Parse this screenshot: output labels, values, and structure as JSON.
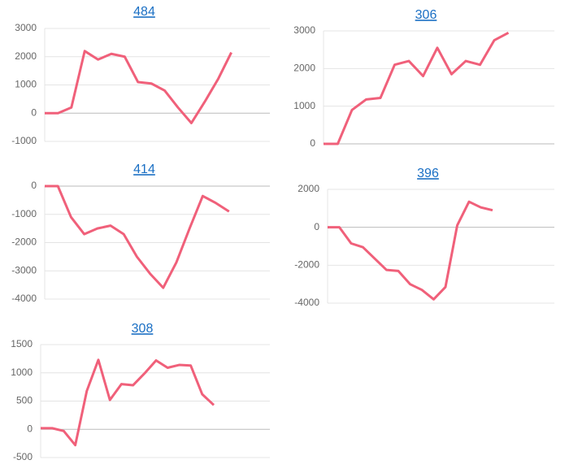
{
  "chart_data": [
    {
      "type": "line",
      "title": "484",
      "color": "#f0607a",
      "grid": true,
      "values": [
        0,
        0,
        200,
        2200,
        1900,
        2100,
        2000,
        1100,
        1050,
        800,
        200,
        -350,
        400,
        1200,
        2150
      ],
      "ylim": [
        -1000,
        3000
      ],
      "yticks": [
        3000,
        2000,
        1000,
        0,
        -1000
      ]
    },
    {
      "type": "line",
      "title": "306",
      "color": "#f0607a",
      "grid": true,
      "values": [
        0,
        0,
        900,
        1180,
        1220,
        2100,
        2200,
        1800,
        2550,
        1850,
        2200,
        2100,
        2750,
        2950
      ],
      "ylim": [
        0,
        3000
      ],
      "yticks": [
        3000,
        2000,
        1000,
        0
      ]
    },
    {
      "type": "line",
      "title": "414",
      "color": "#f0607a",
      "grid": true,
      "values": [
        0,
        0,
        -1100,
        -1700,
        -1500,
        -1400,
        -1700,
        -2500,
        -3100,
        -3600,
        -2700,
        -1500,
        -350,
        -600,
        -900
      ],
      "ylim": [
        -4000,
        0
      ],
      "yticks": [
        0,
        -1000,
        -2000,
        -3000,
        -4000
      ]
    },
    {
      "type": "line",
      "title": "396",
      "color": "#f0607a",
      "grid": true,
      "values": [
        0,
        0,
        -850,
        -1050,
        -1650,
        -2250,
        -2300,
        -3000,
        -3300,
        -3800,
        -3150,
        100,
        1350,
        1050,
        900
      ],
      "ylim": [
        -4000,
        2000
      ],
      "yticks": [
        2000,
        0,
        -2000,
        -4000
      ]
    },
    {
      "type": "line",
      "title": "308",
      "color": "#f0607a",
      "grid": true,
      "values": [
        20,
        20,
        -30,
        -280,
        680,
        1230,
        520,
        800,
        780,
        990,
        1220,
        1090,
        1140,
        1130,
        620,
        430
      ],
      "ylim": [
        -500,
        1500
      ],
      "yticks": [
        1500,
        1000,
        500,
        0,
        -500
      ]
    }
  ]
}
